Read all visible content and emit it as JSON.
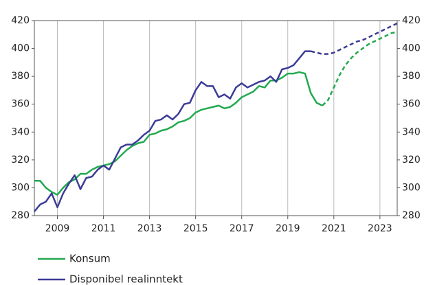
{
  "chart_data": {
    "type": "line",
    "x": [
      2008.0,
      2008.25,
      2008.5,
      2008.75,
      2009.0,
      2009.25,
      2009.5,
      2009.75,
      2010.0,
      2010.25,
      2010.5,
      2010.75,
      2011.0,
      2011.25,
      2011.5,
      2011.75,
      2012.0,
      2012.25,
      2012.5,
      2012.75,
      2013.0,
      2013.25,
      2013.5,
      2013.75,
      2014.0,
      2014.25,
      2014.5,
      2014.75,
      2015.0,
      2015.25,
      2015.5,
      2015.75,
      2016.0,
      2016.25,
      2016.5,
      2016.75,
      2017.0,
      2017.25,
      2017.5,
      2017.75,
      2018.0,
      2018.25,
      2018.5,
      2018.75,
      2019.0,
      2019.25,
      2019.5,
      2019.75,
      2020.0,
      2020.25,
      2020.5,
      2020.75,
      2021.0,
      2021.25,
      2021.5,
      2021.75,
      2022.0,
      2022.25,
      2022.5,
      2022.75,
      2023.0,
      2023.25,
      2023.5,
      2023.75
    ],
    "series": [
      {
        "name": "Konsum",
        "color": "#22a94f",
        "dashed_from": 50,
        "values": [
          305,
          305,
          300,
          297,
          295,
          300,
          304,
          306,
          310,
          310,
          313,
          315,
          316,
          317,
          319,
          323,
          327,
          330,
          332,
          333,
          338,
          339,
          341,
          342,
          344,
          347,
          348,
          350,
          354,
          356,
          357,
          358,
          359,
          357,
          358,
          361,
          365,
          367,
          369,
          373,
          372,
          377,
          377,
          379,
          382,
          382,
          383,
          382,
          368,
          361,
          359,
          363,
          372,
          381,
          388,
          393,
          397,
          400,
          403,
          405,
          407,
          409,
          411,
          412
        ]
      },
      {
        "name": "Disponibel realinntekt",
        "color": "#3b3b97",
        "dashed_from": 48,
        "values": [
          283,
          288,
          290,
          296,
          286,
          296,
          303,
          309,
          299,
          307,
          308,
          313,
          316,
          313,
          321,
          329,
          331,
          331,
          334,
          338,
          341,
          348,
          349,
          352,
          349,
          353,
          360,
          361,
          370,
          376,
          373,
          373,
          365,
          367,
          364,
          372,
          375,
          372,
          374,
          376,
          377,
          380,
          376,
          385,
          386,
          388,
          393,
          398,
          398,
          397,
          396,
          396,
          397,
          399,
          401,
          403,
          405,
          406,
          408,
          410,
          412,
          414,
          416,
          418
        ]
      }
    ],
    "xlim": [
      2008,
      2023.75
    ],
    "xticks": [
      2009,
      2011,
      2013,
      2015,
      2017,
      2019,
      2021,
      2023
    ],
    "ylim": [
      280,
      420
    ],
    "yticks": [
      280,
      300,
      320,
      340,
      360,
      380,
      400,
      420
    ],
    "y2lim": [
      280,
      420
    ],
    "y2ticks": [
      280,
      300,
      320,
      340,
      360,
      380,
      400,
      420
    ],
    "grid": "x"
  }
}
